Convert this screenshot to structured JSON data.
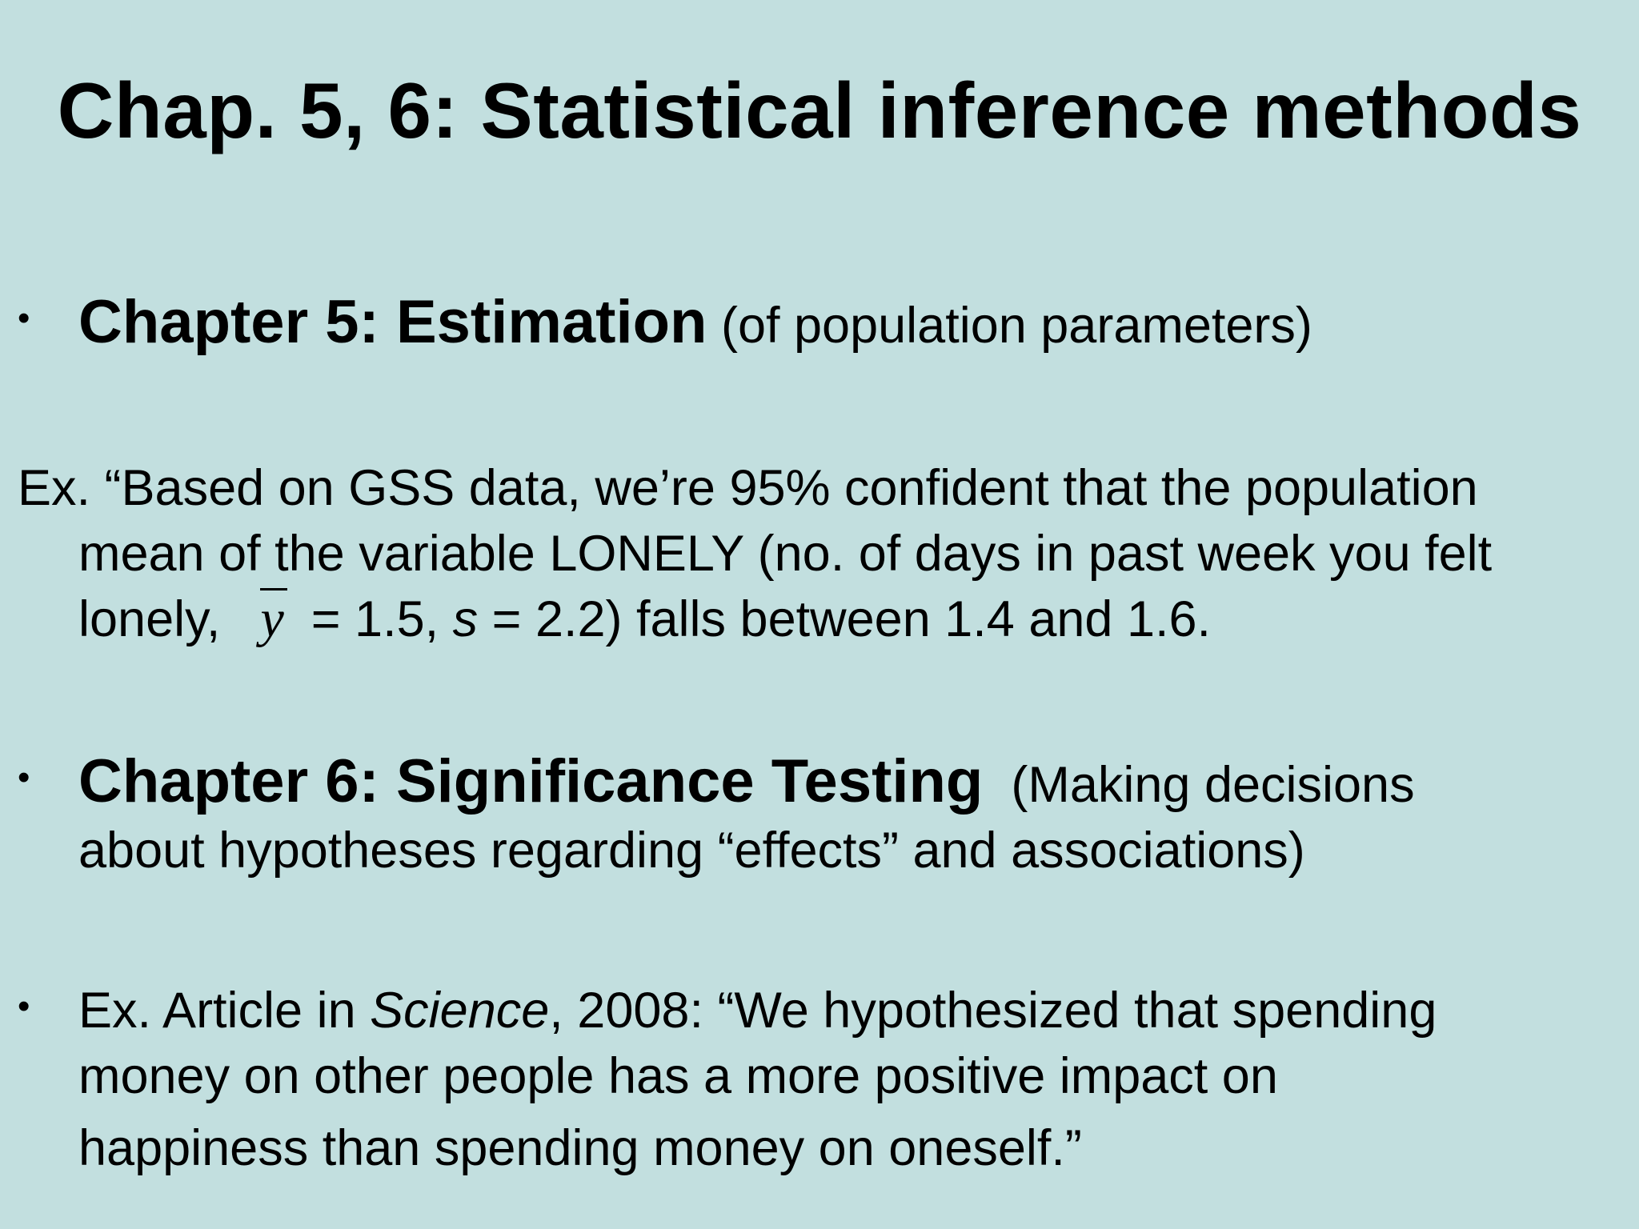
{
  "slide": {
    "title": "Chap. 5, 6: Statistical inference methods",
    "bullet_char": "•",
    "chapter5": {
      "heading": "Chapter 5: Estimation",
      "subtitle": "(of population parameters)"
    },
    "example1": {
      "line1": "Ex. “Based on GSS data, we’re 95% confident that the population",
      "line2": "mean of the variable LONELY (no. of days in past week you felt",
      "line3_prefix": "lonely,",
      "ybar_symbol": "y",
      "line3_mid": "= 1.5,",
      "s_symbol": "s",
      "line3_suffix": "= 2.2) falls between 1.4 and 1.6."
    },
    "chapter6": {
      "heading": "Chapter 6: Significance Testing",
      "subtitle_line1": "(Making decisions",
      "subtitle_line2": "about hypotheses regarding “effects” and associations)"
    },
    "example2": {
      "prefix": "Ex. Article in",
      "journal": "Science",
      "line1_suffix": ", 2008: “We hypothesized that spending",
      "line2": "money on other people has a more positive impact on",
      "line3": "happiness than spending money on oneself.”"
    }
  }
}
